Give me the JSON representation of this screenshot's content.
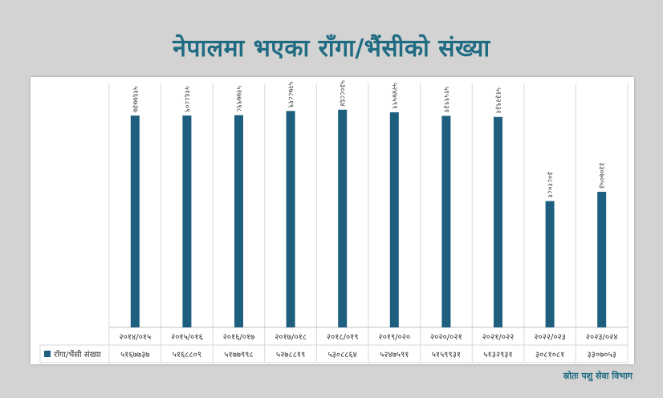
{
  "title": "नेपालमा भएका राँगा/भैंसीको संख्या",
  "source": "स्रोतः पशु सेवा विभाग",
  "colors": {
    "bar": "#1e5f80",
    "title": "#1e6b82",
    "grid": "#d9d9d9"
  },
  "chart_data": {
    "type": "bar",
    "title": "नेपालमा भएका राँगा/भैंसीको संख्या",
    "categories": [
      "२०१४/०१५",
      "२०१५/०१६",
      "२०१६/०१७",
      "२०१७/०१८",
      "२०१८/०१९",
      "२०१९/०२०",
      "२०२०/०२१",
      "२०२१/०२२",
      "२०२२/०२३",
      "२०२३/०२४"
    ],
    "series": [
      {
        "name": "राँगा/भैंसी संख्या",
        "values": [
          5167737,
          5168809,
          5177998,
          5278819,
          5308864,
          5247591,
          5159931,
          5132931,
          3081081,
          3307053
        ],
        "labels": [
          "५१६७७३७",
          "५१६८८०९",
          "५१७७९९८",
          "५२७८८१९",
          "५३०८८६४",
          "५२४७५९१",
          "५१५९९३१",
          "५१३२९३१",
          "३०८१०८१",
          "३३०७०५३"
        ]
      }
    ],
    "ylim": [
      0,
      5950000
    ],
    "grid": false,
    "legend": "table-bottom",
    "data_table": true
  }
}
